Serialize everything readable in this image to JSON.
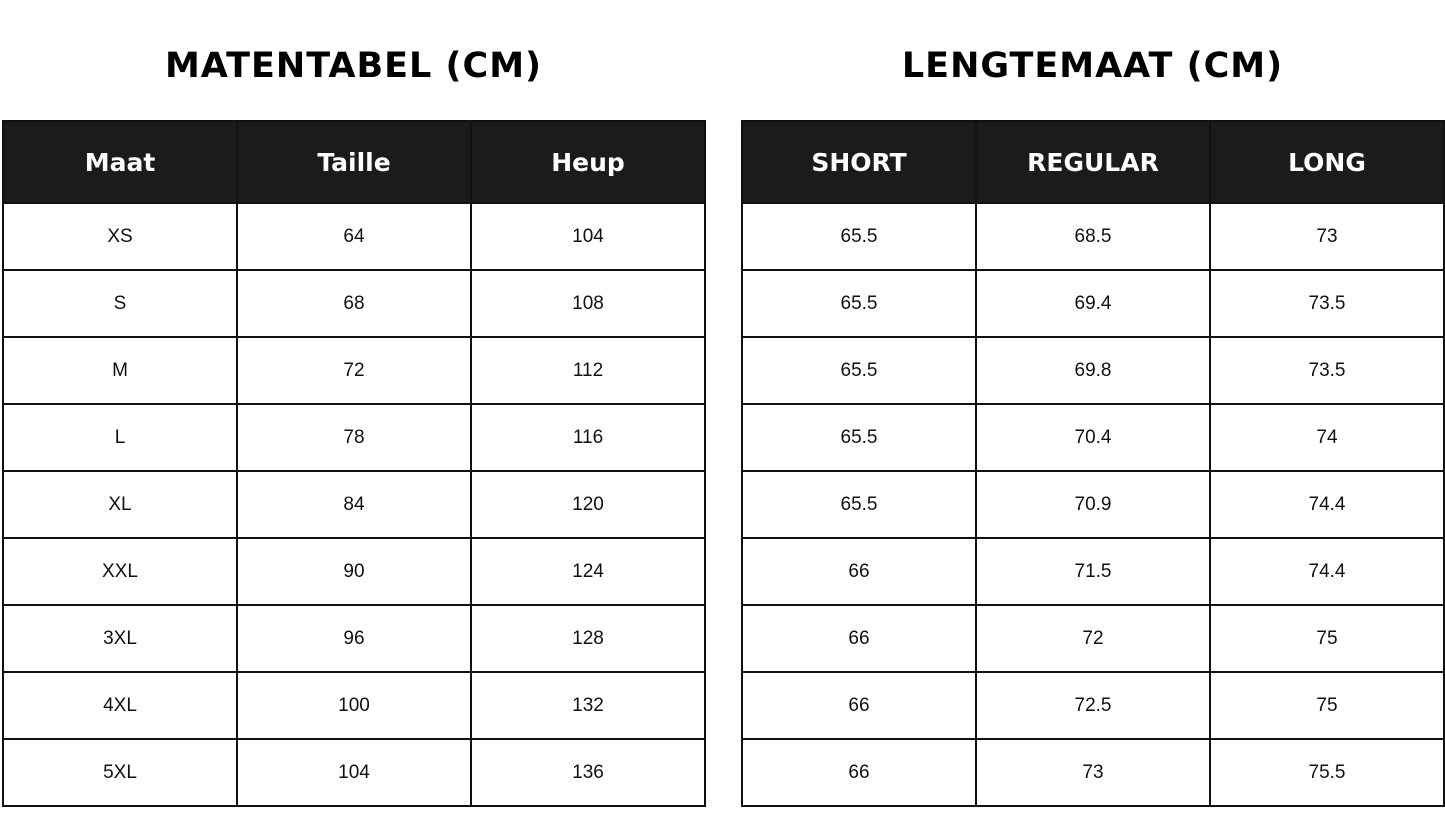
{
  "left": {
    "title": "MATENTABEL (CM)",
    "headers": [
      "Maat",
      "Taille",
      "Heup"
    ],
    "rows": [
      [
        "XS",
        "64",
        "104"
      ],
      [
        "S",
        "68",
        "108"
      ],
      [
        "M",
        "72",
        "112"
      ],
      [
        "L",
        "78",
        "116"
      ],
      [
        "XL",
        "84",
        "120"
      ],
      [
        "XXL",
        "90",
        "124"
      ],
      [
        "3XL",
        "96",
        "128"
      ],
      [
        "4XL",
        "100",
        "132"
      ],
      [
        "5XL",
        "104",
        "136"
      ]
    ]
  },
  "right": {
    "title": "LENGTEMAAT (CM)",
    "headers": [
      "SHORT",
      "REGULAR",
      "LONG"
    ],
    "rows": [
      [
        "65.5",
        "68.5",
        "73"
      ],
      [
        "65.5",
        "69.4",
        "73.5"
      ],
      [
        "65.5",
        "69.8",
        "73.5"
      ],
      [
        "65.5",
        "70.4",
        "74"
      ],
      [
        "65.5",
        "70.9",
        "74.4"
      ],
      [
        "66",
        "71.5",
        "74.4"
      ],
      [
        "66",
        "72",
        "75"
      ],
      [
        "66",
        "72.5",
        "75"
      ],
      [
        "66",
        "73",
        "75.5"
      ]
    ]
  },
  "colors": {
    "header_bg": "#1b1b1b",
    "header_text": "#ffffff",
    "border": "#111111"
  }
}
